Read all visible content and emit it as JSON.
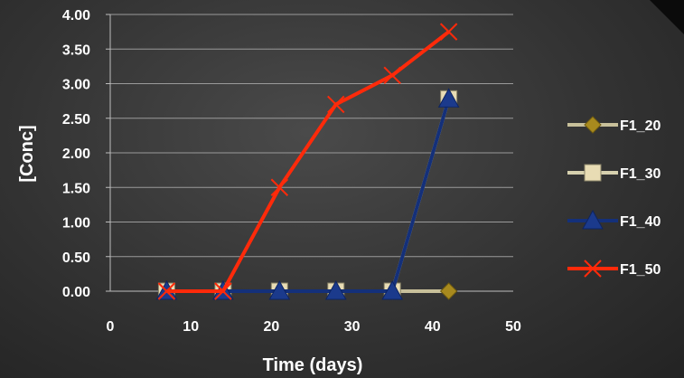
{
  "chart_data": {
    "type": "line",
    "xlabel": "Time (days)",
    "ylabel": "[Conc]",
    "xlim": [
      0,
      50
    ],
    "ylim": [
      0,
      4
    ],
    "x_ticks": [
      "0",
      "10",
      "20",
      "30",
      "40",
      "50"
    ],
    "y_ticks": [
      "0.00",
      "0.50",
      "1.00",
      "1.50",
      "2.00",
      "2.50",
      "3.00",
      "3.50",
      "4.00"
    ],
    "grid": "horizontal",
    "legend_position": "right",
    "series": [
      {
        "name": "F1_20",
        "marker": "diamond",
        "color": "#a88a1e",
        "line_color": "#c8c09a",
        "x": [
          7,
          14,
          21,
          28,
          35,
          42
        ],
        "y": [
          0,
          0,
          0,
          0,
          0,
          0
        ]
      },
      {
        "name": "F1_30",
        "marker": "square",
        "color": "#e8dcb4",
        "line_color": "#d6d0ae",
        "x": [
          7,
          14,
          21,
          28,
          35,
          42
        ],
        "y": [
          0,
          0,
          0,
          0,
          0,
          2.78
        ]
      },
      {
        "name": "F1_40",
        "marker": "triangle",
        "color": "#1b3a8c",
        "line_color": "#14307a",
        "x": [
          7,
          14,
          21,
          28,
          35,
          42
        ],
        "y": [
          0,
          0,
          0,
          0,
          0,
          2.78
        ]
      },
      {
        "name": "F1_50",
        "marker": "x",
        "color": "#ff2a0a",
        "line_color": "#ff2a0a",
        "x": [
          7,
          14,
          21,
          28,
          35,
          42
        ],
        "y": [
          0,
          0,
          1.5,
          2.7,
          3.12,
          3.75
        ]
      }
    ]
  }
}
